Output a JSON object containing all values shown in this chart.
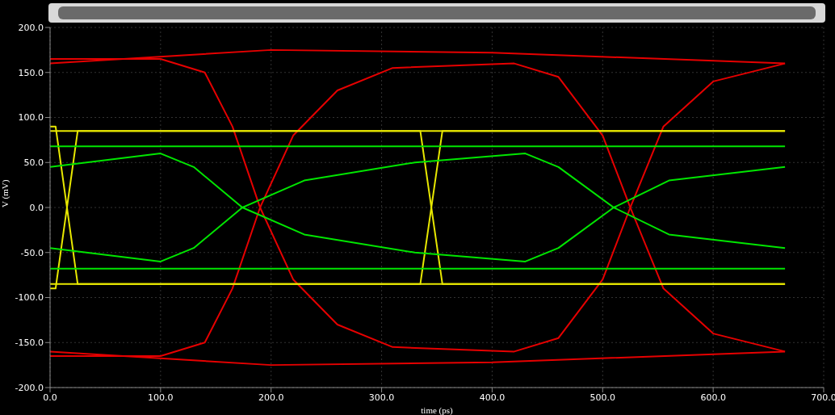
{
  "chart_data": {
    "type": "line",
    "xlabel": "time (ps)",
    "ylabel": "V (mV)",
    "xlim": [
      0,
      700
    ],
    "ylim": [
      -200,
      200
    ],
    "xticks": [
      {
        "value": 0,
        "label": "0.0"
      },
      {
        "value": 100,
        "label": "100.0"
      },
      {
        "value": 200,
        "label": "200.0"
      },
      {
        "value": 300,
        "label": "300.0"
      },
      {
        "value": 400,
        "label": "400.0"
      },
      {
        "value": 500,
        "label": "500.0"
      },
      {
        "value": 600,
        "label": "600.0"
      },
      {
        "value": 700,
        "label": "700.0"
      }
    ],
    "yticks": [
      {
        "value": -200,
        "label": "-200.0"
      },
      {
        "value": -150,
        "label": "-150.0"
      },
      {
        "value": -100,
        "label": "-100.0"
      },
      {
        "value": -50,
        "label": "-50.0"
      },
      {
        "value": 0,
        "label": "0.0"
      },
      {
        "value": 50,
        "label": "50.0"
      },
      {
        "value": 100,
        "label": "100.0"
      },
      {
        "value": 150,
        "label": "150.0"
      },
      {
        "value": 200,
        "label": "200.0"
      }
    ],
    "grid": true,
    "marker": "none",
    "series": [
      {
        "color": "#e60000",
        "x": [
          0,
          100,
          140,
          165,
          190,
          220,
          260,
          310,
          420,
          460,
          500,
          525,
          555,
          600,
          665
        ],
        "values": [
          165,
          165,
          150,
          90,
          0,
          -80,
          -130,
          -155,
          -160,
          -145,
          -80,
          0,
          90,
          140,
          160
        ]
      },
      {
        "color": "#e60000",
        "x": [
          0,
          100,
          140,
          165,
          190,
          220,
          260,
          310,
          420,
          460,
          500,
          525,
          555,
          600,
          665
        ],
        "values": [
          -165,
          -165,
          -150,
          -90,
          0,
          80,
          130,
          155,
          160,
          145,
          80,
          0,
          -90,
          -140,
          -160
        ]
      },
      {
        "color": "#e60000",
        "x": [
          0,
          200,
          400,
          665
        ],
        "values": [
          160,
          175,
          172,
          160
        ]
      },
      {
        "color": "#e60000",
        "x": [
          0,
          200,
          400,
          665
        ],
        "values": [
          -160,
          -175,
          -172,
          -160
        ]
      },
      {
        "color": "#e8e800",
        "x": [
          0,
          5,
          25,
          335,
          355,
          665
        ],
        "values": [
          90,
          90,
          -85,
          -85,
          85,
          85
        ]
      },
      {
        "color": "#e8e800",
        "x": [
          0,
          5,
          25,
          335,
          355,
          665
        ],
        "values": [
          -90,
          -90,
          85,
          85,
          -85,
          -85
        ]
      },
      {
        "color": "#e8e800",
        "x": [
          0,
          665
        ],
        "values": [
          85,
          85
        ]
      },
      {
        "color": "#e8e800",
        "x": [
          0,
          665
        ],
        "values": [
          -85,
          -85
        ]
      },
      {
        "color": "#00e600",
        "x": [
          0,
          100,
          130,
          174,
          230,
          330,
          430,
          460,
          510,
          560,
          665
        ],
        "values": [
          45,
          60,
          45,
          0,
          -30,
          -50,
          -60,
          -45,
          0,
          30,
          45
        ]
      },
      {
        "color": "#00e600",
        "x": [
          0,
          100,
          130,
          174,
          230,
          330,
          430,
          460,
          510,
          560,
          665
        ],
        "values": [
          -45,
          -60,
          -45,
          0,
          30,
          50,
          60,
          45,
          0,
          -30,
          -45
        ]
      },
      {
        "color": "#00e600",
        "x": [
          0,
          665
        ],
        "values": [
          68,
          68
        ]
      },
      {
        "color": "#00e600",
        "x": [
          0,
          665
        ],
        "values": [
          -68,
          -68
        ]
      }
    ]
  }
}
